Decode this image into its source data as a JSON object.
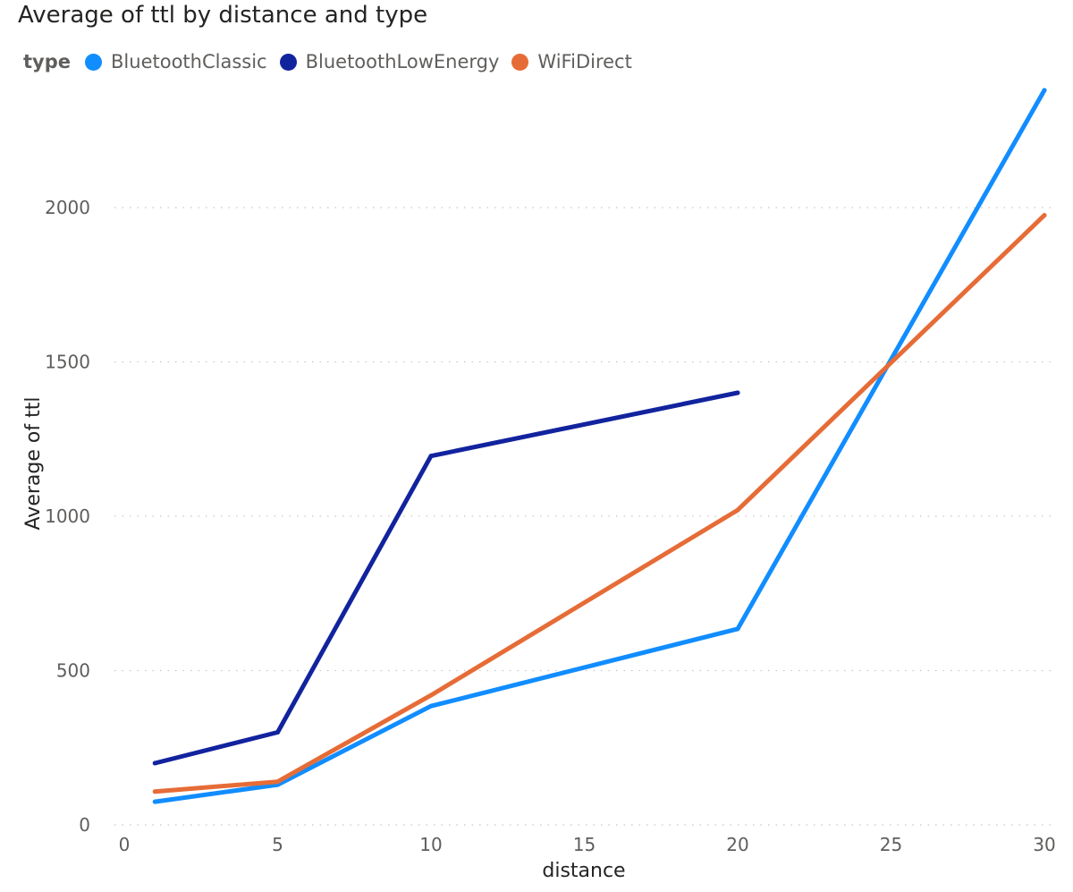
{
  "chart_data": {
    "type": "line",
    "title": "Average of ttl by distance and type",
    "xlabel": "distance",
    "ylabel": "Average of ttl",
    "legend_title": "type",
    "legend_position": "top-left",
    "xlim": [
      0,
      30
    ],
    "ylim": [
      0,
      2400
    ],
    "x_ticks": [
      0,
      5,
      10,
      15,
      20,
      25,
      30
    ],
    "y_ticks": [
      0,
      500,
      1000,
      1500,
      2000
    ],
    "grid": "horizontal dotted",
    "series": [
      {
        "name": "BluetoothClassic",
        "color": "#118dff",
        "x": [
          1,
          5,
          10,
          20,
          30
        ],
        "values": [
          75,
          130,
          385,
          635,
          2380
        ]
      },
      {
        "name": "BluetoothLowEnergy",
        "color": "#12239e",
        "x": [
          1,
          5,
          10,
          20
        ],
        "values": [
          200,
          300,
          1195,
          1400
        ]
      },
      {
        "name": "WiFiDirect",
        "color": "#e66c37",
        "x": [
          1,
          5,
          10,
          20,
          30
        ],
        "values": [
          108,
          140,
          420,
          1020,
          1975
        ]
      }
    ]
  }
}
